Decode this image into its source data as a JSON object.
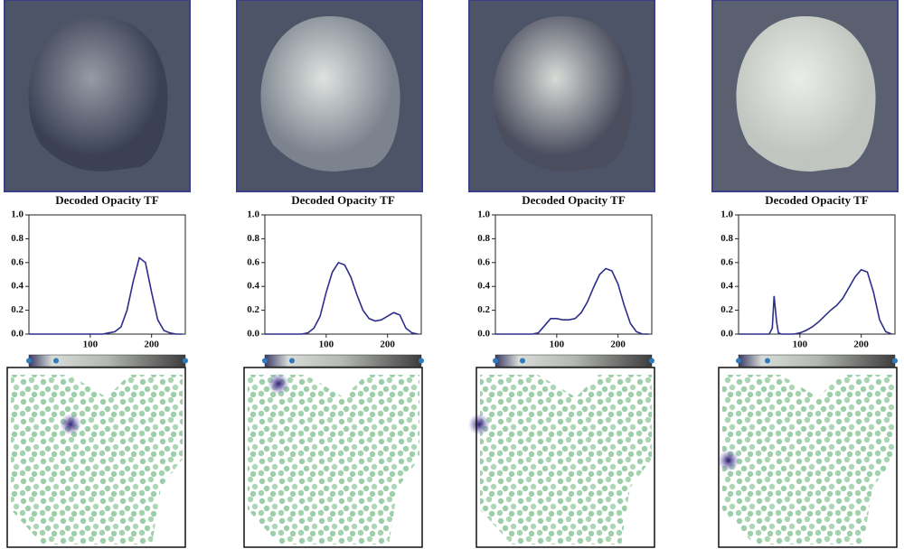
{
  "chart_data": [
    {
      "type": "line",
      "title": "Decoded Opacity TF",
      "x": [
        0,
        10,
        20,
        30,
        40,
        50,
        60,
        70,
        80,
        90,
        100,
        110,
        120,
        130,
        140,
        150,
        160,
        170,
        180,
        190,
        200,
        210,
        220,
        230,
        240,
        250
      ],
      "values": [
        0,
        0,
        0,
        0,
        0,
        0,
        0,
        0,
        0,
        0,
        0,
        0,
        0,
        0.01,
        0.02,
        0.06,
        0.2,
        0.44,
        0.64,
        0.6,
        0.35,
        0.12,
        0.03,
        0.01,
        0,
        0
      ],
      "color": "#2e2e8a",
      "xlim": [
        0,
        255
      ],
      "ylim": [
        0,
        1
      ],
      "xticks": [
        100,
        200
      ],
      "yticks": [
        {
          "value": 0,
          "label": "0.0"
        },
        {
          "value": 0.2,
          "label": "0.2"
        },
        {
          "value": 0.4,
          "label": "0.4"
        },
        {
          "value": 0.6,
          "label": "0.6"
        },
        {
          "value": 0.8,
          "label": "0.8"
        },
        {
          "value": 1,
          "label": "1.0"
        }
      ]
    },
    {
      "type": "line",
      "title": "Decoded Opacity TF",
      "x": [
        0,
        10,
        20,
        30,
        40,
        50,
        60,
        70,
        80,
        90,
        100,
        110,
        120,
        130,
        140,
        150,
        160,
        170,
        180,
        190,
        200,
        210,
        220,
        230,
        240,
        250
      ],
      "values": [
        0,
        0,
        0,
        0,
        0,
        0,
        0,
        0.01,
        0.05,
        0.15,
        0.35,
        0.52,
        0.6,
        0.58,
        0.48,
        0.33,
        0.2,
        0.13,
        0.11,
        0.12,
        0.15,
        0.18,
        0.16,
        0.05,
        0.01,
        0
      ],
      "color": "#2e2e8a",
      "xlim": [
        0,
        255
      ],
      "ylim": [
        0,
        1
      ],
      "xticks": [
        100,
        200
      ],
      "yticks": [
        {
          "value": 0,
          "label": "0.0"
        },
        {
          "value": 0.2,
          "label": "0.2"
        },
        {
          "value": 0.4,
          "label": "0.4"
        },
        {
          "value": 0.6,
          "label": "0.6"
        },
        {
          "value": 0.8,
          "label": "0.8"
        },
        {
          "value": 1,
          "label": "1.0"
        }
      ]
    },
    {
      "type": "line",
      "title": "Decoded Opacity TF",
      "x": [
        0,
        10,
        20,
        30,
        40,
        50,
        60,
        70,
        80,
        90,
        100,
        110,
        120,
        130,
        140,
        150,
        160,
        170,
        180,
        190,
        200,
        210,
        220,
        230,
        240,
        250
      ],
      "values": [
        0,
        0,
        0,
        0,
        0,
        0,
        0,
        0.01,
        0.07,
        0.13,
        0.13,
        0.12,
        0.12,
        0.13,
        0.18,
        0.27,
        0.39,
        0.5,
        0.55,
        0.53,
        0.42,
        0.24,
        0.09,
        0.02,
        0,
        0
      ],
      "color": "#2e2e8a",
      "xlim": [
        0,
        255
      ],
      "ylim": [
        0,
        1
      ],
      "xticks": [
        100,
        200
      ],
      "yticks": [
        {
          "value": 0,
          "label": "0.0"
        },
        {
          "value": 0.2,
          "label": "0.2"
        },
        {
          "value": 0.4,
          "label": "0.4"
        },
        {
          "value": 0.6,
          "label": "0.6"
        },
        {
          "value": 0.8,
          "label": "0.8"
        },
        {
          "value": 1,
          "label": "1.0"
        }
      ]
    },
    {
      "type": "line",
      "title": "Decoded Opacity TF",
      "x": [
        0,
        10,
        20,
        30,
        40,
        50,
        55,
        58,
        62,
        65,
        70,
        80,
        90,
        100,
        110,
        120,
        130,
        140,
        150,
        160,
        170,
        180,
        190,
        200,
        210,
        220,
        230,
        240,
        250
      ],
      "values": [
        0,
        0,
        0,
        0,
        0,
        0,
        0.05,
        0.32,
        0.1,
        0.01,
        0,
        0,
        0,
        0.01,
        0.03,
        0.06,
        0.1,
        0.15,
        0.2,
        0.24,
        0.3,
        0.39,
        0.48,
        0.54,
        0.52,
        0.35,
        0.12,
        0.02,
        0
      ],
      "color": "#2e2e8a",
      "xlim": [
        0,
        255
      ],
      "ylim": [
        0,
        1
      ],
      "xticks": [
        100,
        200
      ],
      "yticks": [
        {
          "value": 0,
          "label": "0.0"
        },
        {
          "value": 0.2,
          "label": "0.2"
        },
        {
          "value": 0.4,
          "label": "0.4"
        },
        {
          "value": 0.6,
          "label": "0.6"
        },
        {
          "value": 0.8,
          "label": "0.8"
        },
        {
          "value": 1,
          "label": "1.0"
        }
      ]
    }
  ]
}
